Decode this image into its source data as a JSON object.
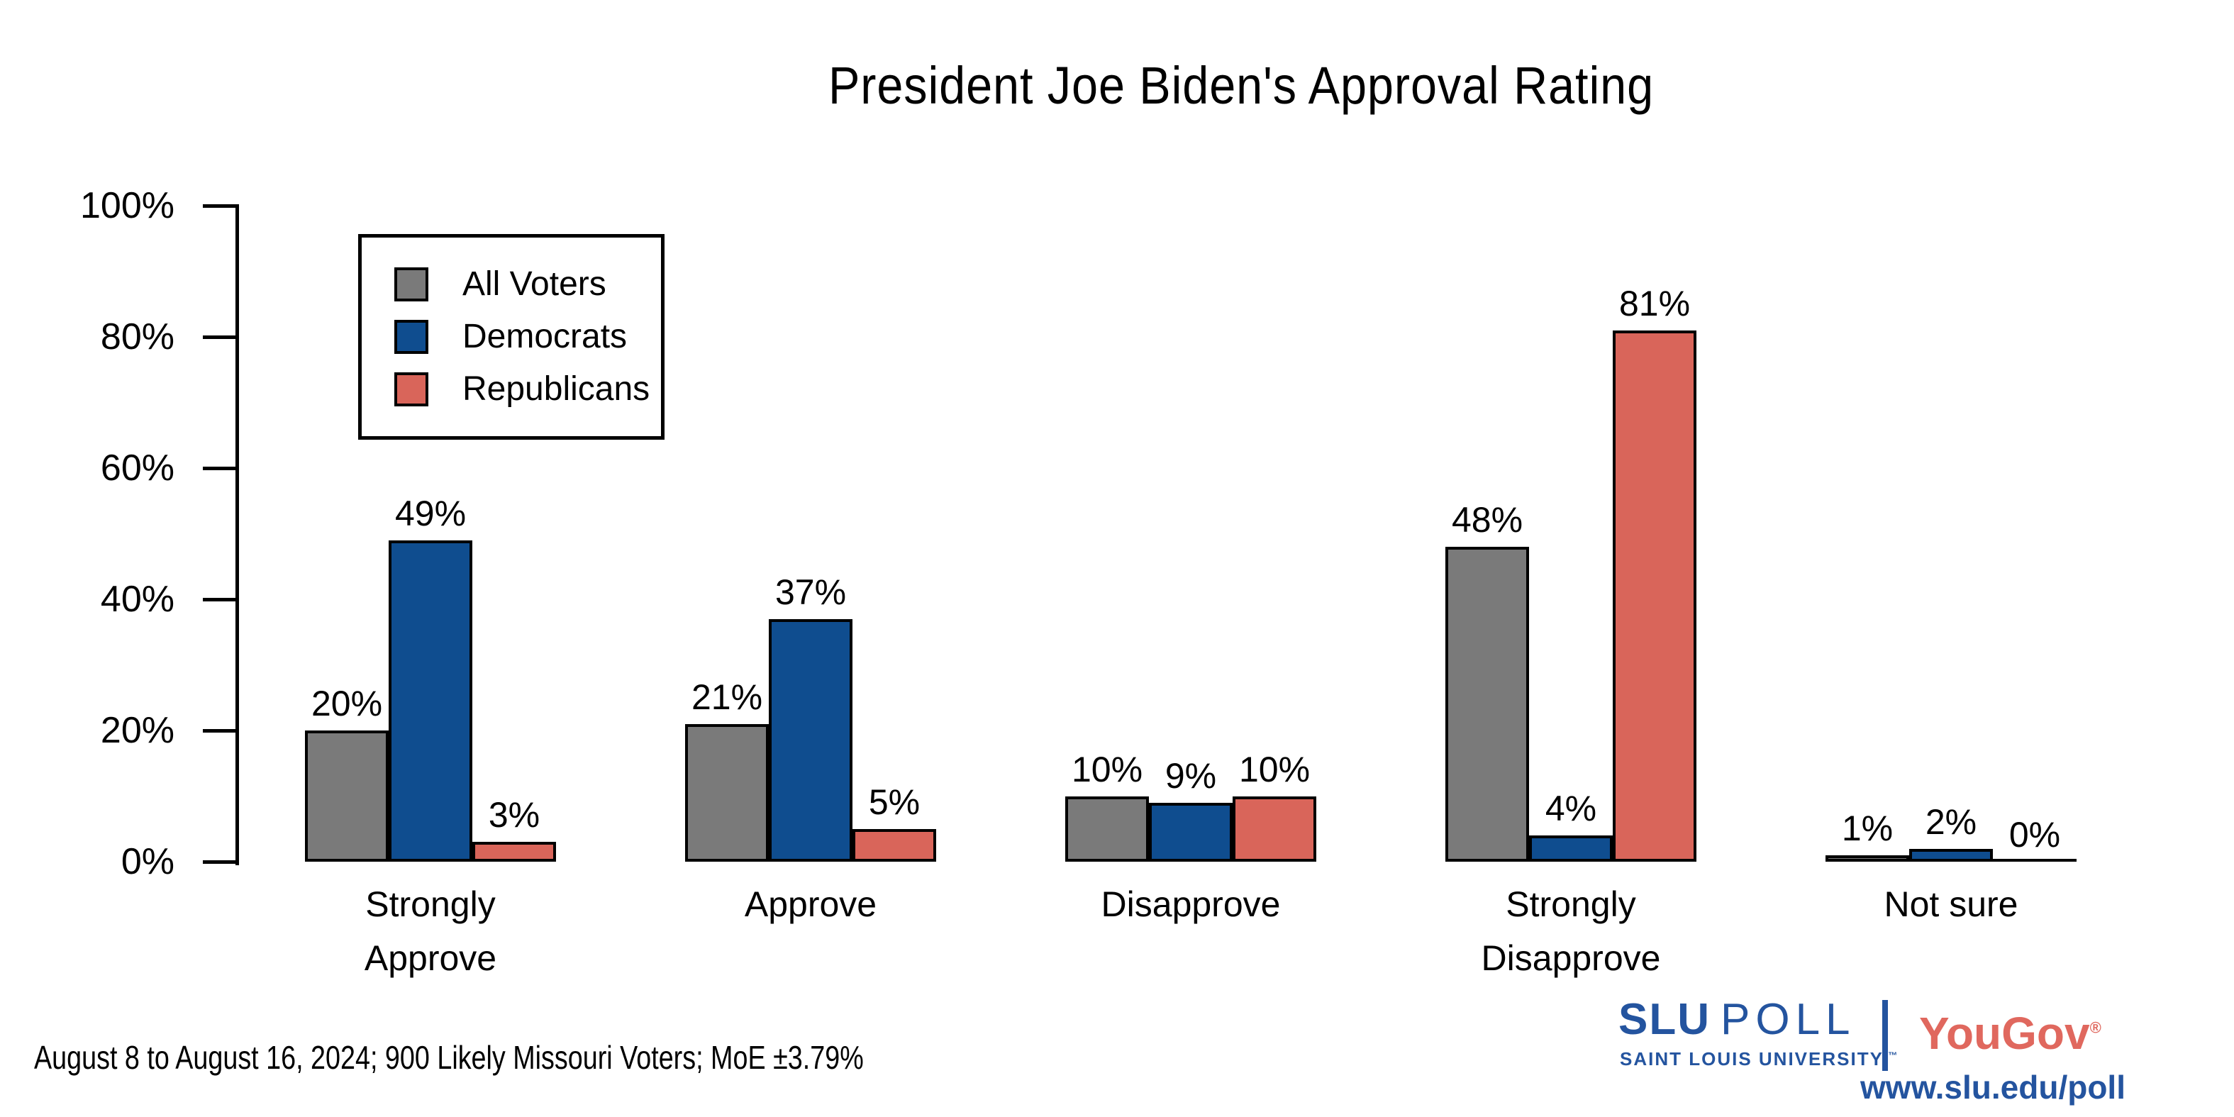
{
  "chart_data": {
    "type": "bar",
    "title": "President Joe Biden's Approval Rating",
    "categories": [
      "Strongly Approve",
      "Approve",
      "Disapprove",
      "Strongly Disapprove",
      "Not sure"
    ],
    "category_display": [
      "Strongly\nApprove",
      "Approve",
      "Disapprove",
      "Strongly\nDisapprove",
      "Not sure"
    ],
    "series": [
      {
        "name": "All Voters",
        "color": "#7a7a7a",
        "values": [
          20,
          21,
          10,
          48,
          1
        ],
        "labels": [
          "20%",
          "21%",
          "10%",
          "48%",
          "1%"
        ]
      },
      {
        "name": "Democrats",
        "color": "#0f4d8f",
        "values": [
          49,
          37,
          9,
          4,
          2
        ],
        "labels": [
          "49%",
          "37%",
          "9%",
          "4%",
          "2%"
        ]
      },
      {
        "name": "Republicans",
        "color": "#d9655a",
        "values": [
          3,
          5,
          10,
          81,
          0
        ],
        "labels": [
          "3%",
          "5%",
          "10%",
          "81%",
          "0%"
        ]
      }
    ],
    "ylim": [
      0,
      100
    ],
    "y_tick_values": [
      0,
      20,
      40,
      60,
      80,
      100
    ],
    "y_tick_labels": [
      "0%",
      "20%",
      "40%",
      "60%",
      "80%",
      "100%"
    ],
    "grid": "off",
    "legend_position": "upper-left",
    "bar_outline_color": "#000000"
  },
  "footer": {
    "note": "August 8 to August 16, 2024; 900 Likely Missouri Voters; MoE ±3.79%"
  },
  "branding": {
    "slu_name": "SLU",
    "slu_poll_word": "POLL",
    "slu_sub": "SAINT LOUIS UNIVERSITY.",
    "slu_tm": "™",
    "yougov": "YouGov",
    "yougov_reg": "®",
    "url": "www.slu.edu/poll",
    "slu_blue": "#24549f",
    "yougov_red": "#e0685e"
  }
}
